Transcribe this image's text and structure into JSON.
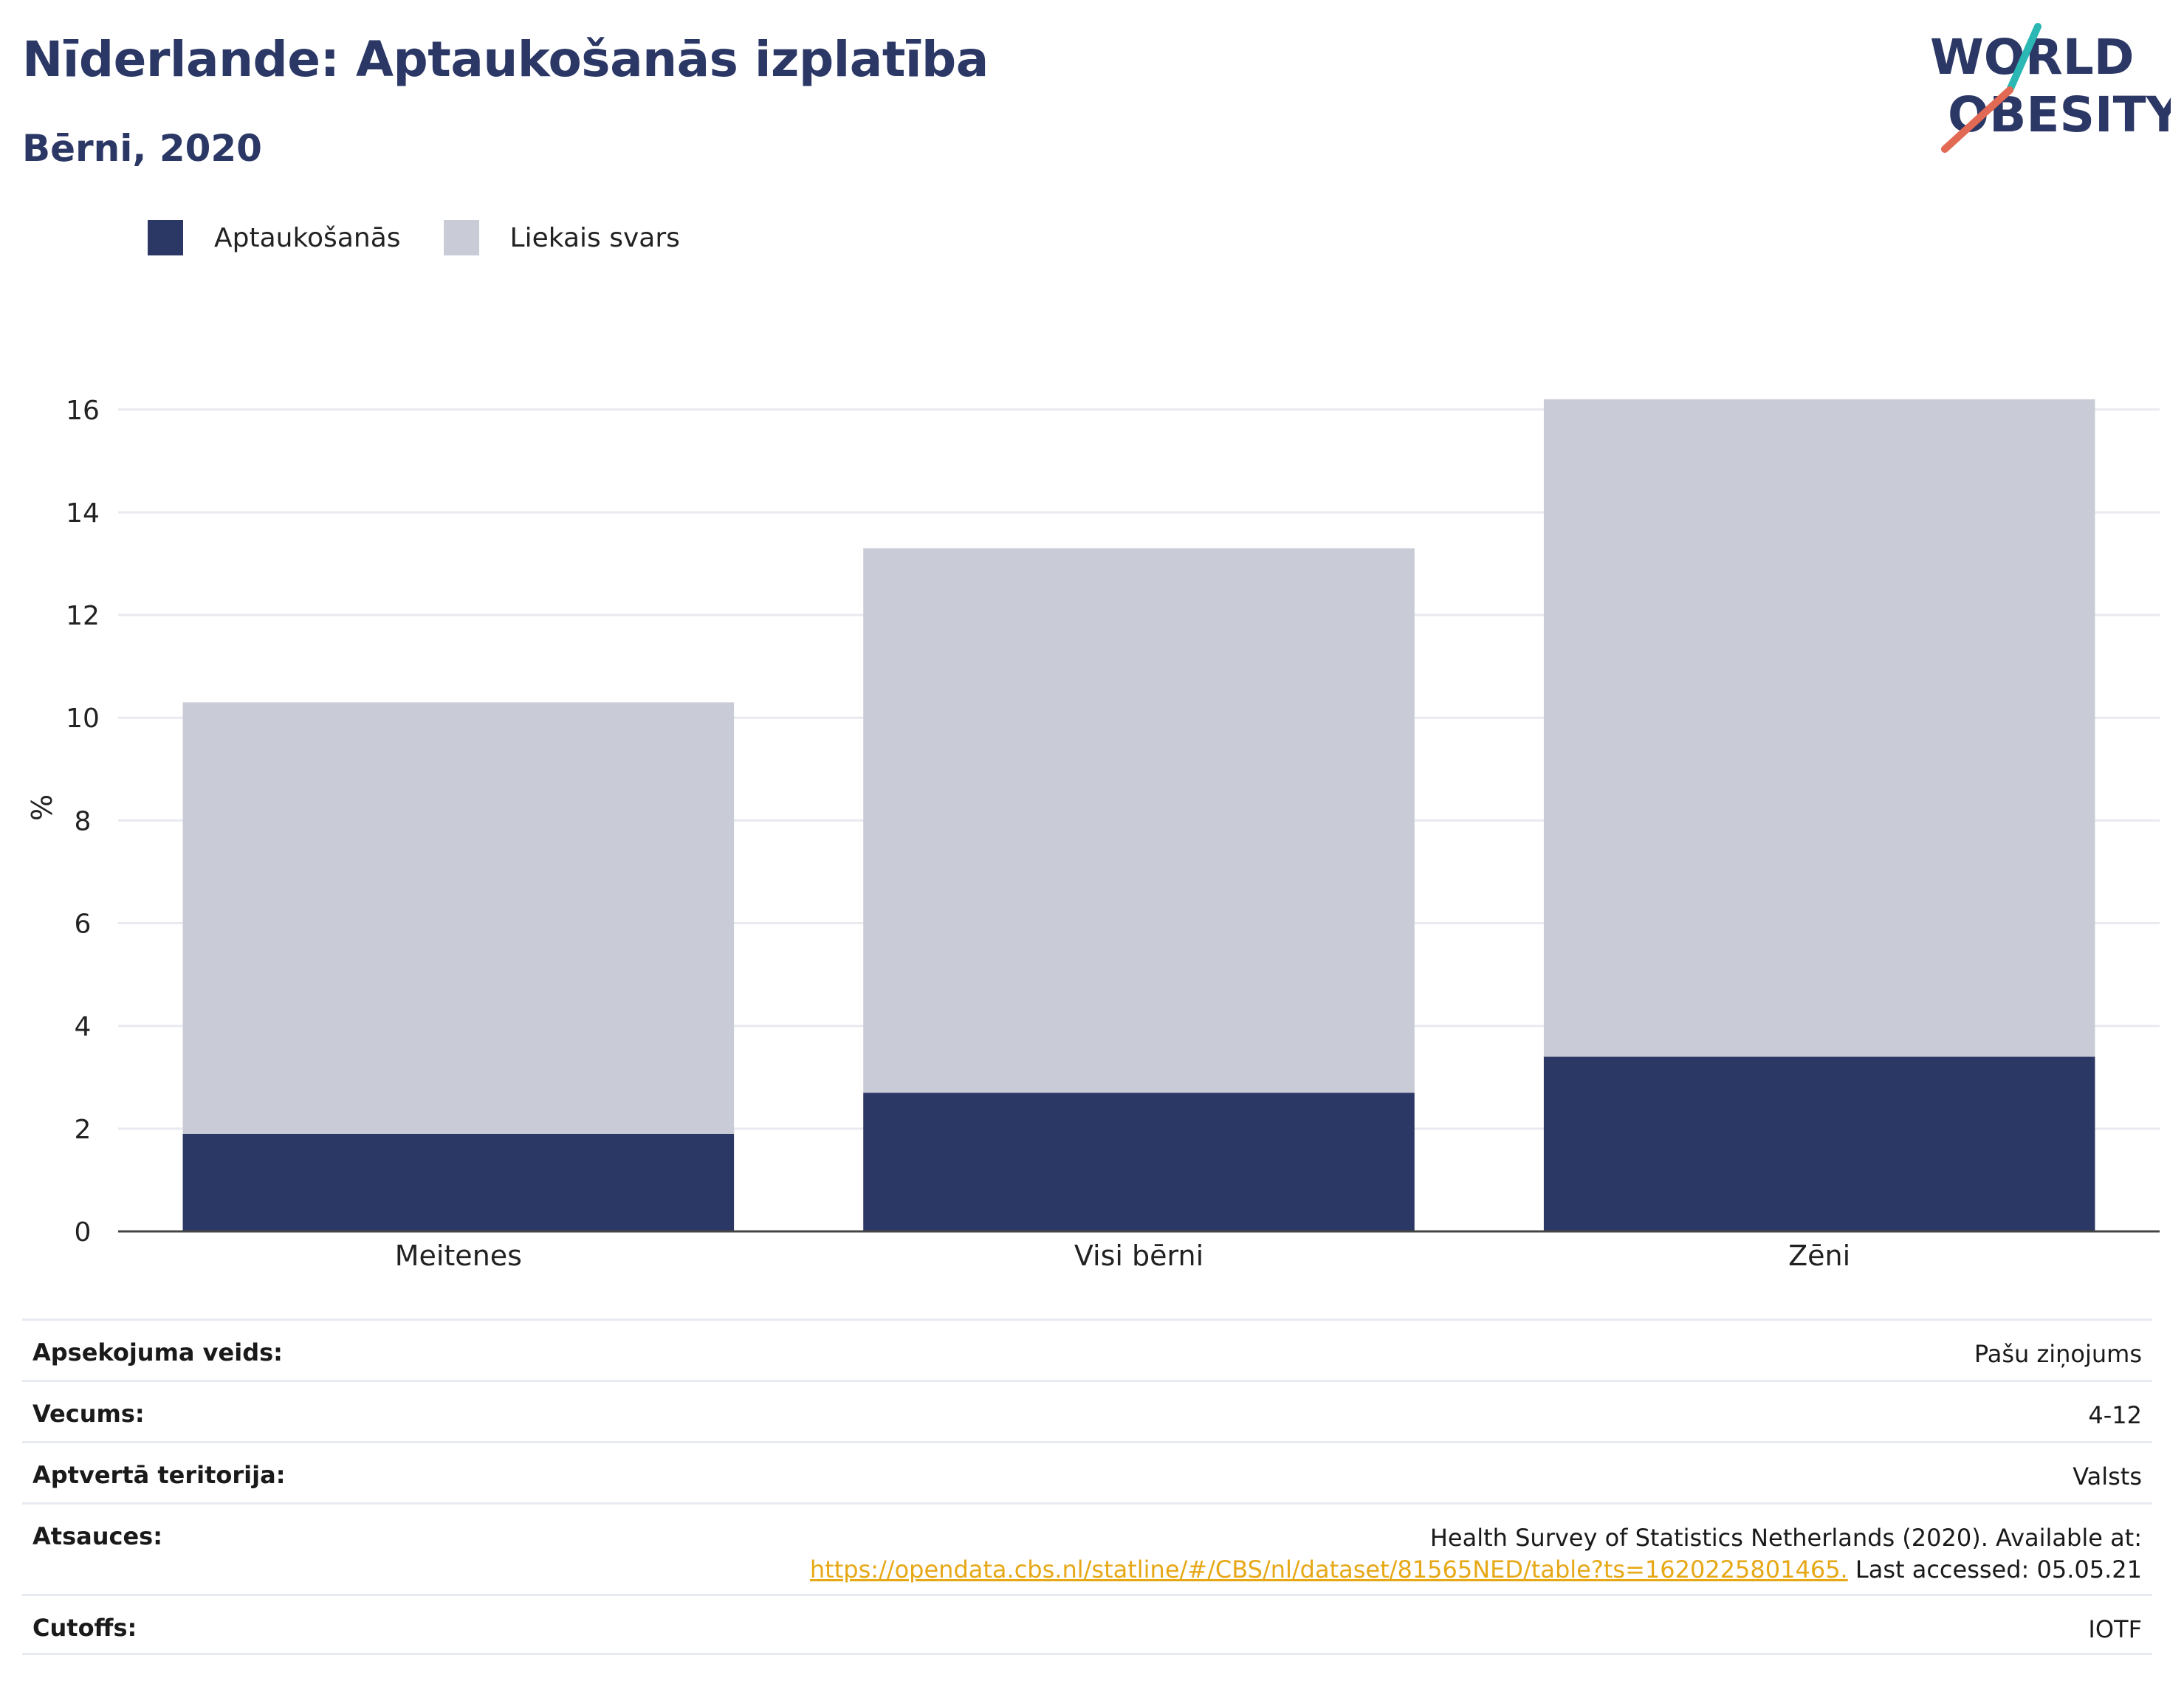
{
  "header": {
    "title": "Nīderlande: Aptaukošanās izplatība",
    "subtitle": "Bērni, 2020"
  },
  "logo": {
    "line1": "WORLD",
    "line2": "OBESITY"
  },
  "legend": [
    {
      "label": "Aptaukošanās",
      "color": "#2b3765"
    },
    {
      "label": "Liekais svars",
      "color": "#c9cbd7"
    }
  ],
  "chart_data": {
    "type": "bar",
    "stacked": true,
    "categories": [
      "Meitenes",
      "Visi bērni",
      "Zēni"
    ],
    "series": [
      {
        "name": "Aptaukošanās",
        "values": [
          1.9,
          2.7,
          3.4
        ],
        "color": "#2b3765"
      },
      {
        "name": "Liekais svars",
        "values": [
          8.4,
          10.6,
          12.8
        ],
        "color": "#c9cbd7"
      }
    ],
    "title": "Nīderlande: Aptaukošanās izplatība",
    "subtitle": "Bērni, 2020",
    "xlabel": "",
    "ylabel": "%",
    "ylim": [
      0,
      16.5
    ],
    "yticks": [
      "0",
      "2",
      "4",
      "6",
      "8",
      "10",
      "12",
      "14",
      "16"
    ],
    "grid": true,
    "legend_position": "top-left"
  },
  "info": {
    "survey_label": "Apsekojuma veids:",
    "survey_value": "Pašu ziņojums",
    "age_label": "Vecums:",
    "age_value": "4-12",
    "area_label": "Aptvertā teritorija:",
    "area_value": "Valsts",
    "refs_label": "Atsauces:",
    "refs_text": "Health Survey of Statistics Netherlands (2020). Available at:",
    "refs_link": "https://opendata.cbs.nl/statline/#/CBS/nl/dataset/81565NED/table?ts=1620225801465.",
    "refs_accessed": "Last accessed: 05.05.21",
    "cutoffs_label": "Cutoffs:",
    "cutoffs_value": "IOTF"
  }
}
